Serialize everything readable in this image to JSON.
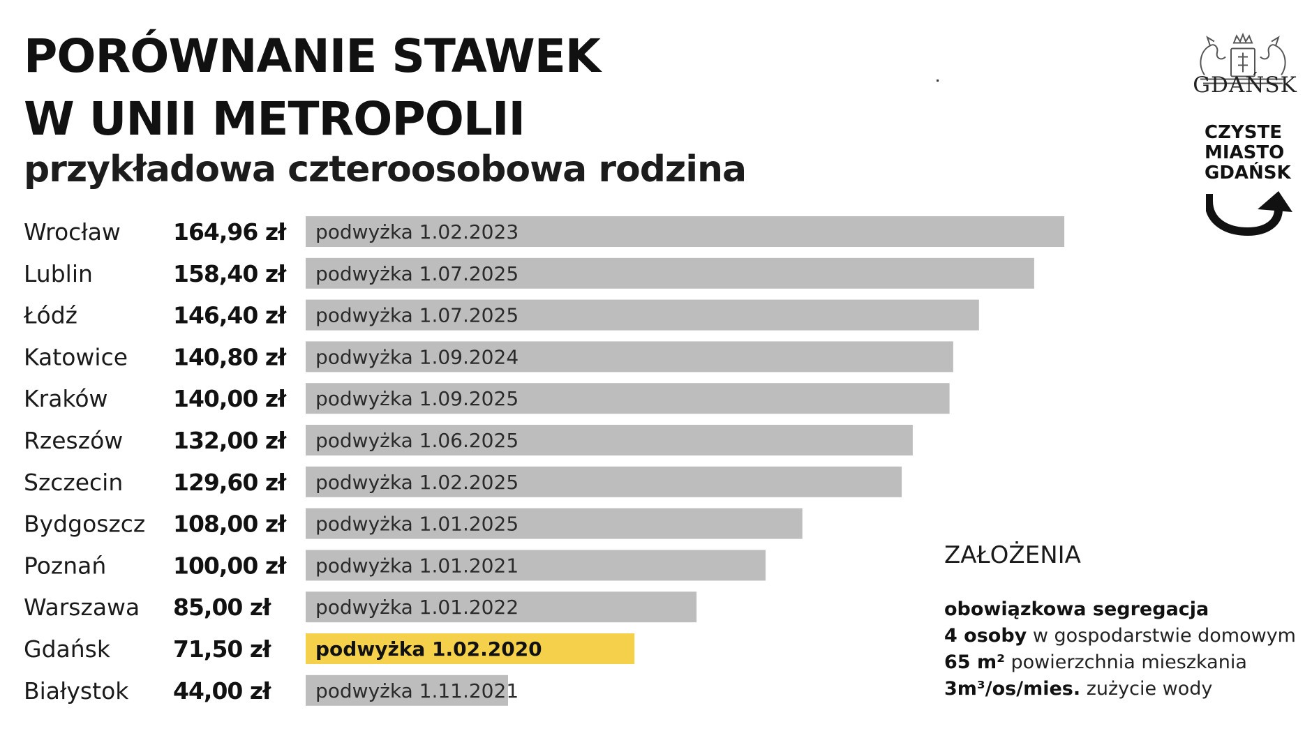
{
  "chart_data": {
    "type": "bar",
    "title": "PORÓWNANIE STAWEK W UNII METROPOLII",
    "title_lines": [
      "PORÓWNANIE STAWEK",
      "W UNII METROPOLII"
    ],
    "subtitle": "przykładowa czteroosobowa rodzina",
    "orientation": "horizontal",
    "categories": [
      "Wrocław",
      "Lublin",
      "Łódź",
      "Katowice",
      "Kraków",
      "Rzeszów",
      "Szczecin",
      "Bydgoszcz",
      "Poznań",
      "Warszawa",
      "Gdańsk",
      "Białystok"
    ],
    "values": [
      164.96,
      158.4,
      146.4,
      140.8,
      140.0,
      132.0,
      129.6,
      108.0,
      100.0,
      85.0,
      71.5,
      44.0
    ],
    "value_labels": [
      "164,96 zł",
      "158,40 zł",
      "146,40 zł",
      "140,80 zł",
      "140,00 zł",
      "132,00 zł",
      "129,60 zł",
      "108,00 zł",
      "100,00 zł",
      "85,00 zł",
      "71,50 zł",
      "44,00 zł"
    ],
    "bar_labels": [
      "podwyżka 1.02.2023",
      "podwyżka 1.07.2025",
      "podwyżka 1.07.2025",
      "podwyżka 1.09.2024",
      "podwyżka 1.09.2025",
      "podwyżka 1.06.2025",
      "podwyżka 1.02.2025",
      "podwyżka 1.01.2025",
      "podwyżka 1.01.2021",
      "podwyżka 1.01.2022",
      "podwyżka 1.02.2020",
      "podwyżka 1.11.2021"
    ],
    "highlight": "Gdańsk",
    "colors": {
      "bar": "#bdbdbd",
      "highlight": "#f5d04a"
    }
  },
  "logos": {
    "city_name": "GDAŃSK",
    "program_lines": [
      "CZYSTE",
      "MIASTO",
      "GDAŃSK"
    ]
  },
  "assumptions": {
    "title": "ZAŁOŻENIA",
    "items": [
      {
        "bold": "obowiązkowa segregacja",
        "rest": ""
      },
      {
        "bold": "4 osoby",
        "rest": " w gospodarstwie domowym"
      },
      {
        "bold": "65 m²",
        "rest": " powierzchnia mieszkania"
      },
      {
        "bold": "3m³/os/mies.",
        "rest": " zużycie wody"
      }
    ]
  }
}
